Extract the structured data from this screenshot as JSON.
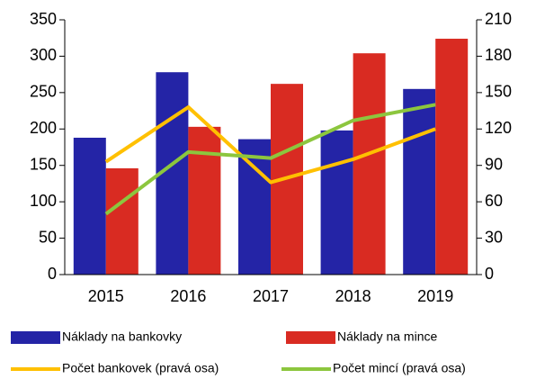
{
  "chart_data": {
    "type": "bar",
    "categories": [
      "2015",
      "2016",
      "2017",
      "2018",
      "2019"
    ],
    "series": [
      {
        "name": "Náklady na bankovky",
        "type": "bar",
        "color": "#2424a6",
        "values": [
          188,
          278,
          186,
          198,
          255
        ]
      },
      {
        "name": "Náklady na mince",
        "type": "bar",
        "color": "#d92b22",
        "values": [
          146,
          203,
          262,
          304,
          324
        ]
      },
      {
        "name": "Počet bankovek (pravá osa)",
        "type": "line",
        "axis": "y2",
        "color": "#ffc000",
        "values": [
          93,
          138,
          76,
          95,
          120
        ]
      },
      {
        "name": "Počet mincí (pravá osa)",
        "type": "line",
        "axis": "y2",
        "color": "#8cc63e",
        "values": [
          50,
          101,
          96,
          127,
          140
        ]
      }
    ],
    "ylim": [
      0,
      350
    ],
    "yticks": [
      0,
      50,
      100,
      150,
      200,
      250,
      300,
      350
    ],
    "y2lim": [
      0,
      210
    ],
    "y2ticks": [
      0,
      30,
      60,
      90,
      120,
      150,
      180,
      210
    ],
    "grid": false
  }
}
